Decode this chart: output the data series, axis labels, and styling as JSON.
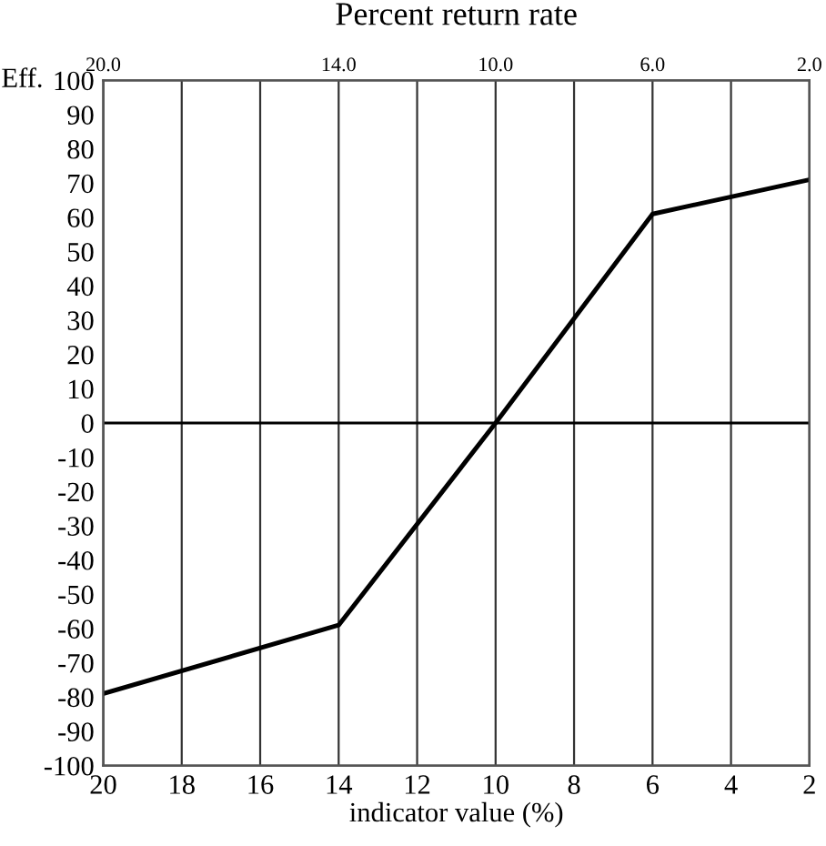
{
  "chart_data": {
    "type": "line",
    "title": "Percent return rate",
    "xlabel": "indicator value (%)",
    "ylabel": "Eff.",
    "x": [
      20,
      14,
      10,
      6,
      2
    ],
    "series": [
      {
        "color": "#000000",
        "values": [
          -79,
          -59,
          0,
          61,
          71
        ]
      }
    ],
    "xlim": [
      20,
      2
    ],
    "xticks": [
      20,
      18,
      16,
      14,
      12,
      10,
      8,
      6,
      4,
      2
    ],
    "x2lim": [
      20,
      2
    ],
    "x2ticks": [
      {
        "value": 20,
        "label": "20.0"
      },
      {
        "value": 14,
        "label": "14.0"
      },
      {
        "value": 10,
        "label": "10.0"
      },
      {
        "value": 6,
        "label": "6.0"
      },
      {
        "value": 2,
        "label": "2.0"
      }
    ],
    "ylim": [
      -100,
      100
    ],
    "yticks": [
      -100,
      -90,
      -80,
      -70,
      -60,
      -50,
      -40,
      -30,
      -20,
      -10,
      0,
      10,
      20,
      30,
      40,
      50,
      60,
      70,
      80,
      90,
      100
    ],
    "ref_lines": [
      {
        "axis": "y",
        "value": 0,
        "color": "#000000"
      }
    ],
    "grid": "x",
    "legend": false,
    "marker": "none",
    "line_style": "solid"
  }
}
